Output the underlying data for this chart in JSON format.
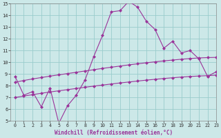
{
  "xlabel": "Windchill (Refroidissement éolien,°C)",
  "x_values": [
    0,
    1,
    2,
    3,
    4,
    5,
    6,
    7,
    8,
    9,
    10,
    11,
    12,
    13,
    14,
    15,
    16,
    17,
    18,
    19,
    20,
    21,
    22,
    23
  ],
  "line1_y": [
    8.8,
    7.2,
    7.5,
    6.2,
    7.8,
    4.8,
    6.3,
    7.2,
    8.5,
    10.5,
    12.3,
    14.3,
    14.4,
    15.2,
    14.7,
    13.5,
    12.8,
    11.2,
    11.8,
    10.8,
    11.0,
    10.3,
    8.8,
    9.2
  ],
  "line2_y": [
    8.3,
    8.45,
    8.58,
    8.7,
    8.82,
    8.93,
    9.04,
    9.15,
    9.26,
    9.37,
    9.48,
    9.58,
    9.68,
    9.78,
    9.87,
    9.96,
    10.04,
    10.12,
    10.19,
    10.26,
    10.32,
    10.37,
    10.4,
    10.42
  ],
  "line3_y": [
    7.0,
    7.12,
    7.24,
    7.36,
    7.47,
    7.57,
    7.67,
    7.77,
    7.87,
    7.97,
    8.06,
    8.15,
    8.24,
    8.32,
    8.4,
    8.48,
    8.55,
    8.62,
    8.68,
    8.74,
    8.79,
    8.83,
    8.86,
    8.9
  ],
  "line_color": "#993399",
  "bg_color": "#cce8e8",
  "grid_color": "#99cccc",
  "ylim": [
    5,
    15
  ],
  "xlim": [
    -0.5,
    23
  ],
  "yticks": [
    5,
    6,
    7,
    8,
    9,
    10,
    11,
    12,
    13,
    14,
    15
  ],
  "xticks": [
    0,
    1,
    2,
    3,
    4,
    5,
    6,
    7,
    8,
    9,
    10,
    11,
    12,
    13,
    14,
    15,
    16,
    17,
    18,
    19,
    20,
    21,
    22,
    23
  ]
}
